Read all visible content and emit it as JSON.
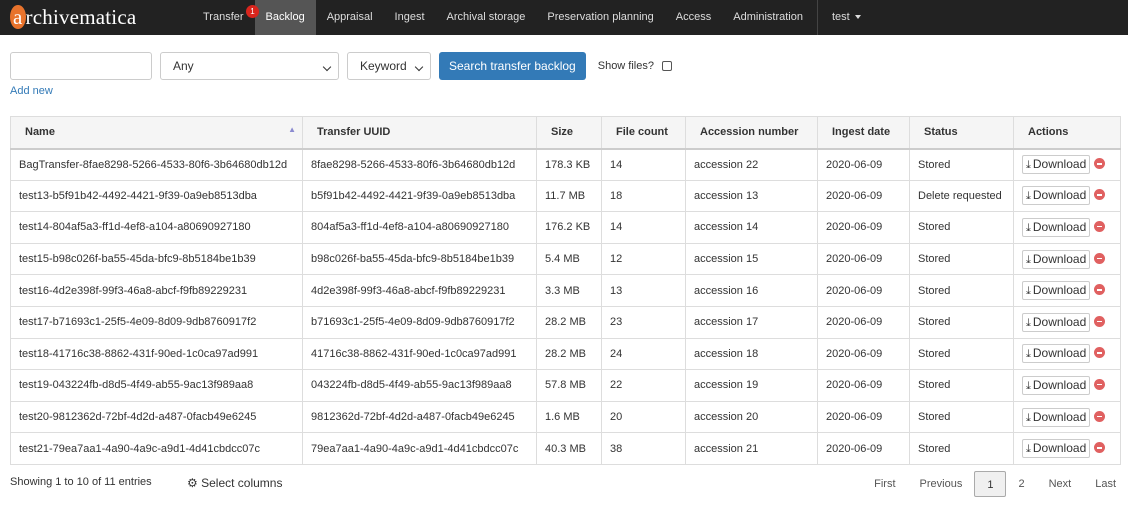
{
  "nav": {
    "logo": "archivematica",
    "items": [
      "Transfer",
      "Backlog",
      "Appraisal",
      "Ingest",
      "Archival storage",
      "Preservation planning",
      "Access",
      "Administration"
    ],
    "badge": "1",
    "user": "test"
  },
  "search": {
    "field": "Any",
    "type": "Keyword",
    "button": "Search transfer backlog",
    "show_files": "Show files?",
    "add_new": "Add new"
  },
  "table": {
    "headers": [
      "Name",
      "Transfer UUID",
      "Size",
      "File count",
      "Accession number",
      "Ingest date",
      "Status",
      "Actions"
    ],
    "download": "Download",
    "rows": [
      [
        "BagTransfer-8fae8298-5266-4533-80f6-3b64680db12d",
        "8fae8298-5266-4533-80f6-3b64680db12d",
        "178.3 KB",
        "14",
        "accession 22",
        "2020-06-09",
        "Stored"
      ],
      [
        "test13-b5f91b42-4492-4421-9f39-0a9eb8513dba",
        "b5f91b42-4492-4421-9f39-0a9eb8513dba",
        "11.7 MB",
        "18",
        "accession 13",
        "2020-06-09",
        "Delete requested"
      ],
      [
        "test14-804af5a3-ff1d-4ef8-a104-a80690927180",
        "804af5a3-ff1d-4ef8-a104-a80690927180",
        "176.2 KB",
        "14",
        "accession 14",
        "2020-06-09",
        "Stored"
      ],
      [
        "test15-b98c026f-ba55-45da-bfc9-8b5184be1b39",
        "b98c026f-ba55-45da-bfc9-8b5184be1b39",
        "5.4 MB",
        "12",
        "accession 15",
        "2020-06-09",
        "Stored"
      ],
      [
        "test16-4d2e398f-99f3-46a8-abcf-f9fb89229231",
        "4d2e398f-99f3-46a8-abcf-f9fb89229231",
        "3.3 MB",
        "13",
        "accession 16",
        "2020-06-09",
        "Stored"
      ],
      [
        "test17-b71693c1-25f5-4e09-8d09-9db8760917f2",
        "b71693c1-25f5-4e09-8d09-9db8760917f2",
        "28.2 MB",
        "23",
        "accession 17",
        "2020-06-09",
        "Stored"
      ],
      [
        "test18-41716c38-8862-431f-90ed-1c0ca97ad991",
        "41716c38-8862-431f-90ed-1c0ca97ad991",
        "28.2 MB",
        "24",
        "accession 18",
        "2020-06-09",
        "Stored"
      ],
      [
        "test19-043224fb-d8d5-4f49-ab55-9ac13f989aa8",
        "043224fb-d8d5-4f49-ab55-9ac13f989aa8",
        "57.8 MB",
        "22",
        "accession 19",
        "2020-06-09",
        "Stored"
      ],
      [
        "test20-9812362d-72bf-4d2d-a487-0facb49e6245",
        "9812362d-72bf-4d2d-a487-0facb49e6245",
        "1.6 MB",
        "20",
        "accession 20",
        "2020-06-09",
        "Stored"
      ],
      [
        "test21-79ea7aa1-4a90-4a9c-a9d1-4d41cbdcc07c",
        "79ea7aa1-4a90-4a9c-a9d1-4d41cbdcc07c",
        "40.3 MB",
        "38",
        "accession 21",
        "2020-06-09",
        "Stored"
      ]
    ]
  },
  "footer": {
    "info": "Showing 1 to 10 of 11 entries",
    "select_columns": "Select columns",
    "pages": [
      "First",
      "Previous",
      "1",
      "2",
      "Next",
      "Last"
    ]
  }
}
